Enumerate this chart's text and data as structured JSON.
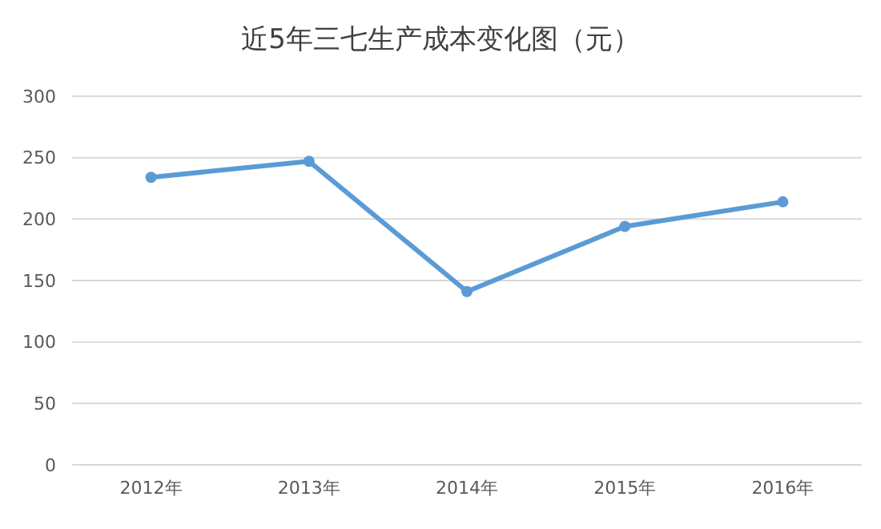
{
  "chart_data": {
    "type": "line",
    "title": "近5年三七生产成本变化图（元）",
    "categories": [
      "2012年",
      "2013年",
      "2014年",
      "2015年",
      "2016年"
    ],
    "series": [
      {
        "color": "#5b9bd5",
        "values": [
          234,
          247,
          141,
          194,
          214
        ]
      }
    ],
    "ylim": [
      0,
      300
    ],
    "yticks": [
      0,
      50,
      100,
      150,
      200,
      250,
      300
    ],
    "grid": "y",
    "marker": "circle"
  }
}
